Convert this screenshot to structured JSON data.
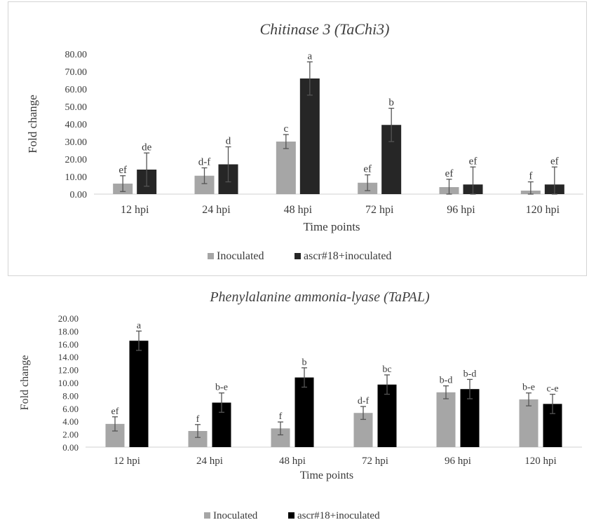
{
  "chart_data": [
    {
      "type": "bar",
      "title": "Chitinase 3 (TaChi3)",
      "xlabel": "Time points",
      "ylabel": "Fold change",
      "ylim": [
        0,
        80
      ],
      "yticks": [
        "0.00",
        "10.00",
        "20.00",
        "30.00",
        "40.00",
        "50.00",
        "60.00",
        "70.00",
        "80.00"
      ],
      "categories": [
        "12 hpi",
        "24 hpi",
        "48 hpi",
        "72 hpi",
        "96 hpi",
        "120 hpi"
      ],
      "grid": false,
      "legend_position": "bottom",
      "series": [
        {
          "name": "Inoculated",
          "color": "#a6a6a6",
          "values": [
            6.0,
            10.5,
            30.0,
            6.5,
            4.0,
            2.0
          ],
          "errors": [
            4.5,
            4.5,
            4.0,
            4.5,
            4.5,
            5.0
          ],
          "labels": [
            "ef",
            "d-f",
            "c",
            "ef",
            "ef",
            "f"
          ]
        },
        {
          "name": "ascr#18+inoculated",
          "color": "#262626",
          "values": [
            14.0,
            17.0,
            66.0,
            39.5,
            5.5,
            5.5
          ],
          "errors": [
            9.5,
            10.0,
            9.5,
            9.5,
            10.0,
            10.0
          ],
          "labels": [
            "de",
            "d",
            "a",
            "b",
            "ef",
            "ef"
          ]
        }
      ]
    },
    {
      "type": "bar",
      "title": "Phenylalanine ammonia-lyase (TaPAL)",
      "xlabel": "Time points",
      "ylabel": "Fold change",
      "ylim": [
        0,
        20
      ],
      "yticks": [
        "0.00",
        "2.00",
        "4.00",
        "6.00",
        "8.00",
        "10.00",
        "12.00",
        "14.00",
        "16.00",
        "18.00",
        "20.00"
      ],
      "categories": [
        "12 hpi",
        "24 hpi",
        "48 hpi",
        "72 hpi",
        "96 hpi",
        "120 hpi"
      ],
      "grid": false,
      "legend_position": "bottom",
      "series": [
        {
          "name": "Inoculated",
          "color": "#a6a6a6",
          "values": [
            3.6,
            2.5,
            2.9,
            5.3,
            8.5,
            7.4
          ],
          "errors": [
            1.1,
            1.0,
            1.0,
            1.0,
            1.0,
            1.0
          ],
          "labels": [
            "ef",
            "f",
            "f",
            "d-f",
            "b-d",
            "b-e"
          ]
        },
        {
          "name": "ascr#18+inoculated",
          "color": "#000000",
          "values": [
            16.5,
            6.9,
            10.8,
            9.7,
            9.0,
            6.7
          ],
          "errors": [
            1.5,
            1.5,
            1.5,
            1.5,
            1.5,
            1.5
          ],
          "labels": [
            "a",
            "b-e",
            "b",
            "bc",
            "b-d",
            "c-e"
          ]
        }
      ]
    }
  ]
}
